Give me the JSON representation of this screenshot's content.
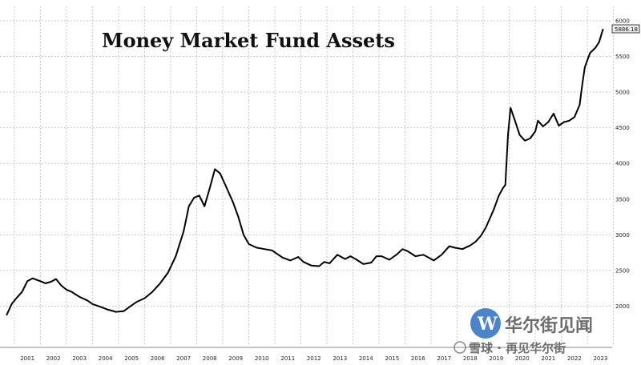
{
  "chart_data": {
    "type": "line",
    "title": "Money Market Fund Assets",
    "xlabel": "",
    "ylabel": "",
    "x_ticks": [
      "2001",
      "2002",
      "2003",
      "2004",
      "2005",
      "2006",
      "2007",
      "2008",
      "2009",
      "2010",
      "2011",
      "2012",
      "2013",
      "2014",
      "2015",
      "2016",
      "2017",
      "2018",
      "2019",
      "2020",
      "2021",
      "2022",
      "2023"
    ],
    "y_ticks": [
      2000,
      2500,
      3000,
      3500,
      4000,
      4500,
      5000,
      5500,
      6000
    ],
    "ylim": [
      1500,
      6000
    ],
    "y_axis_side": "right",
    "grid": true,
    "last_value_label": "5886.18",
    "series": [
      {
        "points": [
          [
            2000.7,
            1870
          ],
          [
            2000.9,
            2030
          ],
          [
            2001.1,
            2120
          ],
          [
            2001.3,
            2200
          ],
          [
            2001.5,
            2350
          ],
          [
            2001.7,
            2390
          ],
          [
            2002.0,
            2350
          ],
          [
            2002.2,
            2320
          ],
          [
            2002.4,
            2340
          ],
          [
            2002.6,
            2380
          ],
          [
            2002.8,
            2290
          ],
          [
            2003.0,
            2230
          ],
          [
            2003.2,
            2200
          ],
          [
            2003.5,
            2130
          ],
          [
            2003.8,
            2080
          ],
          [
            2004.0,
            2030
          ],
          [
            2004.3,
            1990
          ],
          [
            2004.6,
            1950
          ],
          [
            2004.9,
            1920
          ],
          [
            2005.2,
            1930
          ],
          [
            2005.5,
            2010
          ],
          [
            2005.7,
            2060
          ],
          [
            2006.0,
            2110
          ],
          [
            2006.3,
            2200
          ],
          [
            2006.6,
            2320
          ],
          [
            2006.9,
            2470
          ],
          [
            2007.2,
            2700
          ],
          [
            2007.5,
            3050
          ],
          [
            2007.7,
            3400
          ],
          [
            2007.9,
            3520
          ],
          [
            2008.1,
            3550
          ],
          [
            2008.3,
            3400
          ],
          [
            2008.5,
            3650
          ],
          [
            2008.7,
            3920
          ],
          [
            2008.9,
            3860
          ],
          [
            2009.1,
            3700
          ],
          [
            2009.4,
            3450
          ],
          [
            2009.6,
            3250
          ],
          [
            2009.8,
            3000
          ],
          [
            2010.0,
            2870
          ],
          [
            2010.3,
            2820
          ],
          [
            2010.6,
            2800
          ],
          [
            2010.9,
            2780
          ],
          [
            2011.1,
            2730
          ],
          [
            2011.3,
            2680
          ],
          [
            2011.6,
            2640
          ],
          [
            2011.9,
            2690
          ],
          [
            2012.1,
            2620
          ],
          [
            2012.4,
            2570
          ],
          [
            2012.7,
            2560
          ],
          [
            2012.9,
            2620
          ],
          [
            2013.1,
            2600
          ],
          [
            2013.4,
            2720
          ],
          [
            2013.7,
            2660
          ],
          [
            2013.9,
            2700
          ],
          [
            2014.1,
            2660
          ],
          [
            2014.4,
            2590
          ],
          [
            2014.7,
            2610
          ],
          [
            2014.9,
            2700
          ],
          [
            2015.1,
            2700
          ],
          [
            2015.4,
            2650
          ],
          [
            2015.7,
            2730
          ],
          [
            2015.9,
            2800
          ],
          [
            2016.1,
            2770
          ],
          [
            2016.4,
            2700
          ],
          [
            2016.7,
            2720
          ],
          [
            2016.9,
            2680
          ],
          [
            2017.1,
            2640
          ],
          [
            2017.4,
            2720
          ],
          [
            2017.7,
            2840
          ],
          [
            2017.9,
            2820
          ],
          [
            2018.2,
            2800
          ],
          [
            2018.5,
            2850
          ],
          [
            2018.7,
            2900
          ],
          [
            2018.9,
            2980
          ],
          [
            2019.1,
            3100
          ],
          [
            2019.4,
            3350
          ],
          [
            2019.6,
            3550
          ],
          [
            2019.75,
            3650
          ],
          [
            2019.85,
            3700
          ],
          [
            2019.95,
            4400
          ],
          [
            2020.05,
            4780
          ],
          [
            2020.2,
            4620
          ],
          [
            2020.4,
            4400
          ],
          [
            2020.6,
            4320
          ],
          [
            2020.8,
            4350
          ],
          [
            2021.0,
            4450
          ],
          [
            2021.1,
            4600
          ],
          [
            2021.3,
            4520
          ],
          [
            2021.5,
            4580
          ],
          [
            2021.7,
            4700
          ],
          [
            2021.9,
            4530
          ],
          [
            2022.1,
            4580
          ],
          [
            2022.3,
            4600
          ],
          [
            2022.5,
            4650
          ],
          [
            2022.7,
            4820
          ],
          [
            2022.8,
            5100
          ],
          [
            2022.9,
            5350
          ],
          [
            2023.1,
            5550
          ],
          [
            2023.3,
            5620
          ],
          [
            2023.45,
            5700
          ],
          [
            2023.6,
            5886
          ]
        ]
      }
    ]
  },
  "watermark": {
    "brand": "华尔街见闻",
    "credit": "雪球 · 再见华尔街"
  }
}
